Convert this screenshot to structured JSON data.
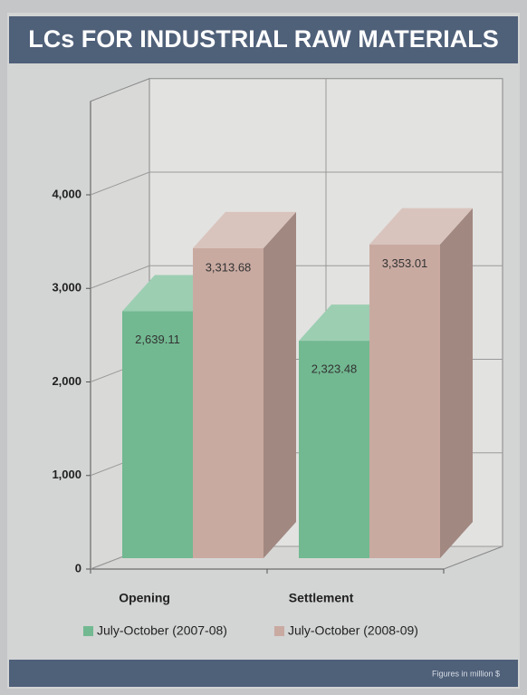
{
  "chart_data": {
    "type": "bar3d",
    "title": "LCs FOR INDUSTRIAL RAW MATERIALS",
    "footnote": "Figures in million $",
    "categories": [
      "Opening",
      "Settlement"
    ],
    "series": [
      {
        "name": "July-October (2007-08)",
        "color": "#72b991",
        "values": [
          2639.11,
          2323.48
        ],
        "value_labels": [
          "2,639.11",
          "2,323.48"
        ]
      },
      {
        "name": "July-October (2008-09)",
        "color": "#c9aaa1",
        "values": [
          3313.68,
          3353.01
        ],
        "value_labels": [
          "3,313.68",
          "3,353.01"
        ]
      }
    ],
    "ylim": [
      0,
      5000
    ],
    "yticks": [
      0,
      {
        "value": 1000,
        "label": "1,000"
      },
      {
        "value": 2000,
        "label": "2,000"
      },
      {
        "value": 3000,
        "label": "3,000"
      },
      {
        "value": 4000,
        "label": "4,000"
      }
    ],
    "grid": true,
    "legend": "bottom"
  }
}
